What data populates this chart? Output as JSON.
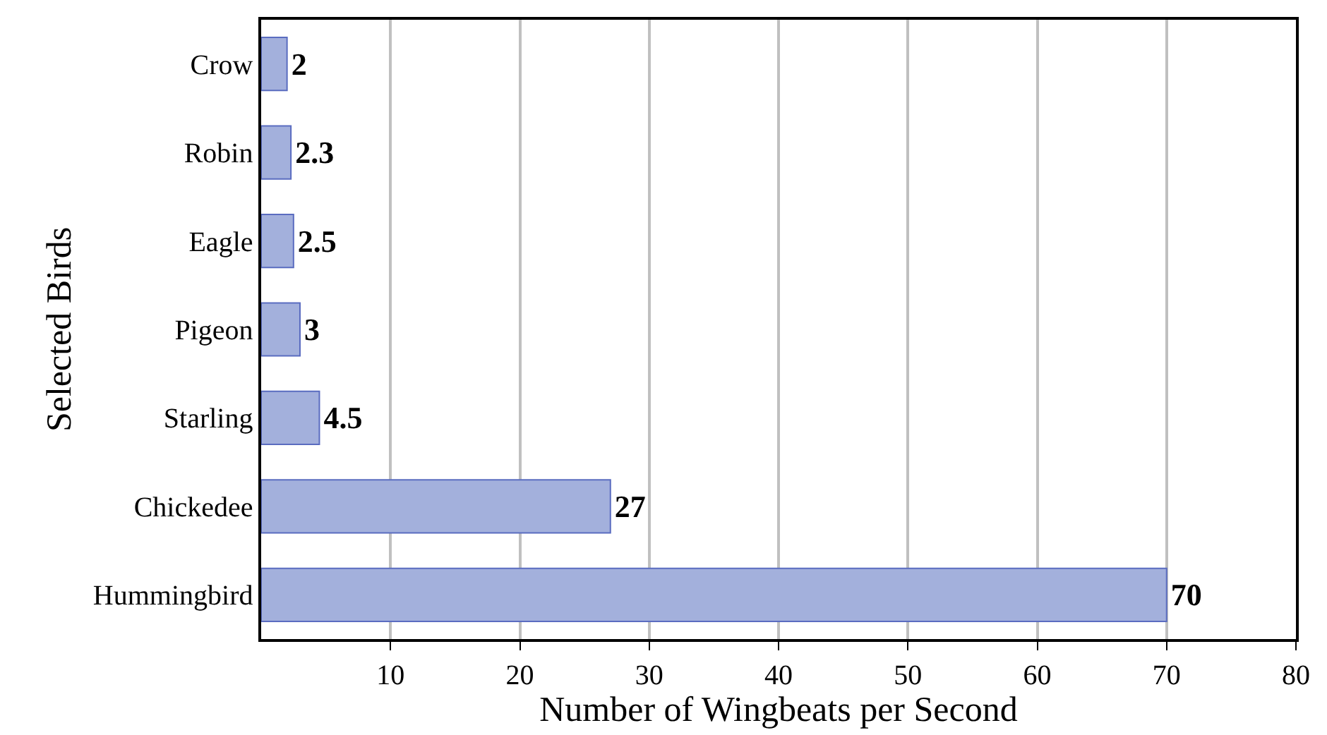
{
  "chart_data": {
    "type": "bar",
    "orientation": "horizontal",
    "categories": [
      "Crow",
      "Robin",
      "Eagle",
      "Pigeon",
      "Starling",
      "Chickedee",
      "Hummingbird"
    ],
    "values": [
      2,
      2.3,
      2.5,
      3,
      4.5,
      27,
      70
    ],
    "color": "#a3b0dc",
    "xlim": [
      0,
      80
    ],
    "xticks": [
      10,
      20,
      30,
      40,
      50,
      60,
      70,
      80
    ],
    "xlabel": "Number of Wingbeats per Second",
    "ylabel": "Selected Birds",
    "grid": "x",
    "data_labels": true,
    "legend": false
  }
}
